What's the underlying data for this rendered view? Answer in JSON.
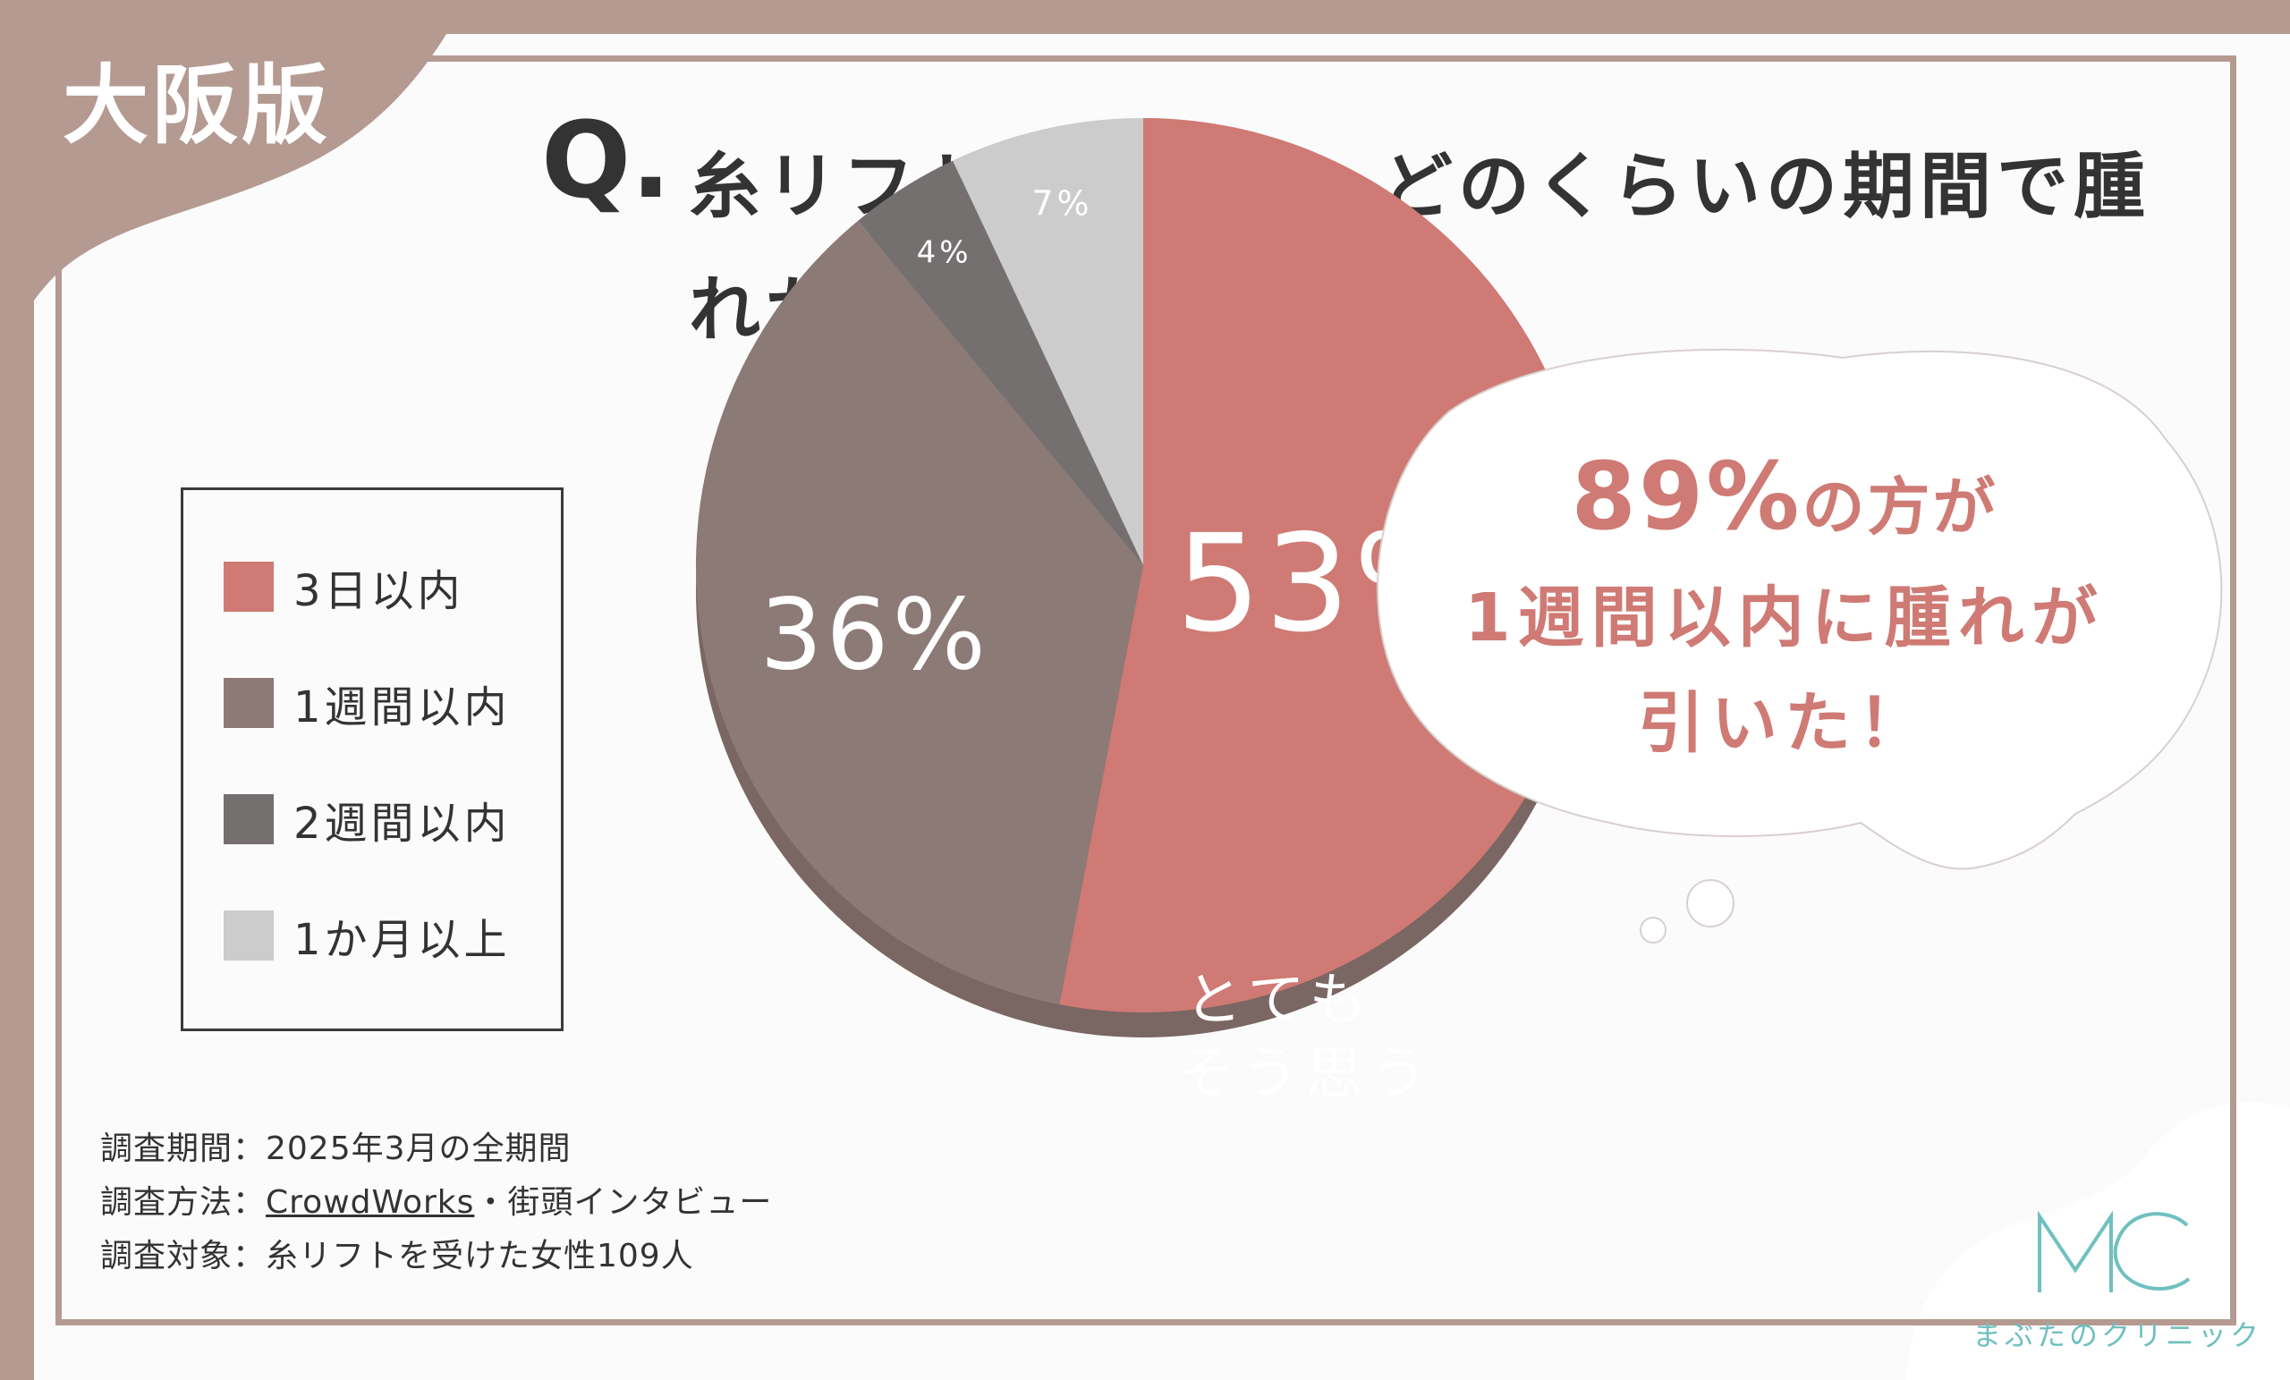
{
  "region_tag": "大阪版",
  "question": {
    "prefix": "Q.",
    "text": "糸リフトの施術後、どのくらいの期間で腫れが引きましたか？"
  },
  "chart_data": {
    "type": "pie",
    "title": "糸リフトの施術後、どのくらいの期間で腫れが引きましたか？",
    "categories": [
      "3日以内",
      "1週間以内",
      "2週間以内",
      "1か月以上"
    ],
    "values": [
      53,
      36,
      4,
      7
    ],
    "unit": "%",
    "labels": [
      "53%",
      "36%",
      "4%",
      "7%"
    ],
    "colors": [
      "#cf7a74",
      "#8c7a77",
      "#747070",
      "#cccccc"
    ],
    "legend_placement": "left",
    "annotations": [
      "とても",
      "そう思う"
    ]
  },
  "callout": {
    "line1_value": "89%",
    "line1_text": "の方が",
    "line2": "1週間以内に腫れが",
    "line3": "引いた！"
  },
  "survey": {
    "period": "調査期間：2025年3月の全期間",
    "method_prefix": "調査方法：",
    "method_link": "CrowdWorks",
    "method_suffix": "・街頭インタビュー",
    "target": "調査対象：糸リフトを受けた女性109人"
  },
  "logo": {
    "mark": "MC",
    "name": "まぶたのクリニック"
  },
  "colors": {
    "frame": "#b49a91",
    "accent": "#cf7a74",
    "text": "#333333",
    "logo": "#6fc0c0"
  }
}
